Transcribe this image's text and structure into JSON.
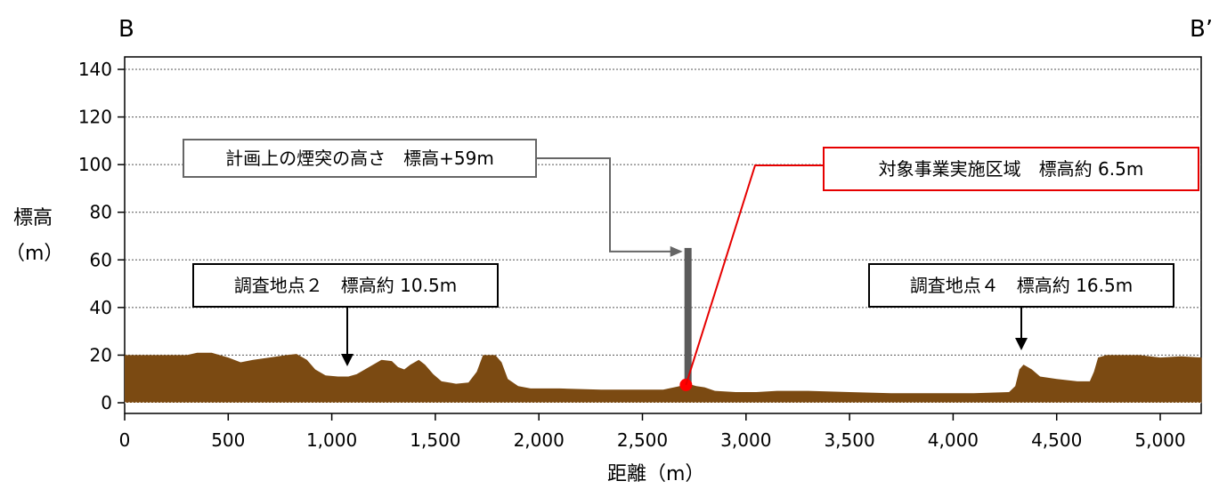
{
  "chart_data": {
    "type": "area",
    "title": "",
    "corner_left": "B",
    "corner_right": "B’",
    "ylabel_line1": "標高",
    "ylabel_line2": "（m）",
    "xlabel": "距離（m）",
    "xlim": [
      0,
      5200
    ],
    "ylim": [
      0,
      145
    ],
    "x_ticks": [
      0,
      500,
      1000,
      1500,
      2000,
      2500,
      3000,
      3500,
      4000,
      4500,
      5000
    ],
    "x_tick_labels": [
      "0",
      "500",
      "1,000",
      "1,500",
      "2,000",
      "2,500",
      "3,000",
      "3,500",
      "4,000",
      "4,500",
      "5,000"
    ],
    "y_ticks": [
      0,
      20,
      40,
      60,
      80,
      100,
      120,
      140
    ],
    "y_tick_labels": [
      "0",
      "20",
      "40",
      "60",
      "80",
      "100",
      "120",
      "140"
    ],
    "grid": true,
    "series": [
      {
        "fill": "#7b4a12",
        "points": [
          [
            0,
            20
          ],
          [
            300,
            20
          ],
          [
            350,
            21
          ],
          [
            420,
            21
          ],
          [
            500,
            19
          ],
          [
            560,
            17
          ],
          [
            620,
            18
          ],
          [
            700,
            19
          ],
          [
            780,
            20
          ],
          [
            830,
            20.5
          ],
          [
            880,
            18
          ],
          [
            920,
            14
          ],
          [
            970,
            11.5
          ],
          [
            1030,
            11
          ],
          [
            1080,
            11
          ],
          [
            1120,
            12
          ],
          [
            1160,
            14
          ],
          [
            1200,
            16
          ],
          [
            1240,
            18
          ],
          [
            1290,
            17.5
          ],
          [
            1320,
            15
          ],
          [
            1350,
            14
          ],
          [
            1380,
            16
          ],
          [
            1420,
            18
          ],
          [
            1450,
            16
          ],
          [
            1490,
            12
          ],
          [
            1530,
            9
          ],
          [
            1600,
            8
          ],
          [
            1660,
            8.5
          ],
          [
            1700,
            13
          ],
          [
            1730,
            20
          ],
          [
            1790,
            20
          ],
          [
            1820,
            17
          ],
          [
            1850,
            10
          ],
          [
            1900,
            7
          ],
          [
            1960,
            6
          ],
          [
            2100,
            6
          ],
          [
            2300,
            5.5
          ],
          [
            2500,
            5.5
          ],
          [
            2600,
            5.5
          ],
          [
            2680,
            7
          ],
          [
            2720,
            8
          ],
          [
            2760,
            7
          ],
          [
            2800,
            6.5
          ],
          [
            2850,
            5
          ],
          [
            2950,
            4.5
          ],
          [
            3050,
            4.5
          ],
          [
            3150,
            5
          ],
          [
            3300,
            5
          ],
          [
            3500,
            4.5
          ],
          [
            3700,
            4
          ],
          [
            3900,
            4
          ],
          [
            4100,
            4
          ],
          [
            4270,
            4.5
          ],
          [
            4300,
            7
          ],
          [
            4320,
            14
          ],
          [
            4340,
            16
          ],
          [
            4380,
            14
          ],
          [
            4420,
            11
          ],
          [
            4500,
            10
          ],
          [
            4600,
            9
          ],
          [
            4660,
            9
          ],
          [
            4680,
            13
          ],
          [
            4700,
            19
          ],
          [
            4740,
            20
          ],
          [
            4900,
            20
          ],
          [
            5000,
            19
          ],
          [
            5100,
            19.5
          ],
          [
            5200,
            19
          ]
        ]
      }
    ],
    "markers": {
      "chimney": {
        "x": 2720,
        "y_bottom": 8,
        "y_top": 65,
        "color": "#5a5a5a"
      },
      "site_point": {
        "x": 2710,
        "y": 7.5,
        "color": "#ff0000"
      }
    },
    "annotations": [
      {
        "id": "chimney",
        "text": "計画上の煙突の高さ　標高+59m",
        "border": "#666666",
        "target_x": 2680,
        "target_y": 65
      },
      {
        "id": "site",
        "text": "対象事業実施区域　標高約 6.5m",
        "border": "#e60000",
        "target_x": 2710,
        "target_y": 7.5
      },
      {
        "id": "point2",
        "text": "調査地点２　標高約 10.5m",
        "border": "#000000",
        "target_x": 1070,
        "target_y": 14
      },
      {
        "id": "point4",
        "text": "調査地点４　標高約 16.5m",
        "border": "#000000",
        "target_x": 4350,
        "target_y": 21
      }
    ]
  }
}
